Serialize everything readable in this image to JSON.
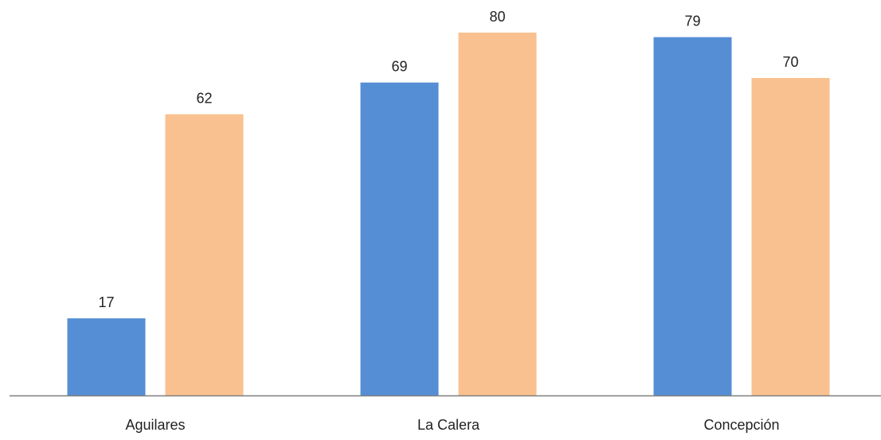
{
  "chart_data": {
    "type": "bar",
    "categories": [
      "Aguilares",
      "La Calera",
      "Concepción"
    ],
    "series": [
      {
        "color": "#558ED5",
        "values": [
          17,
          69,
          79
        ]
      },
      {
        "color": "#F9C18F",
        "values": [
          62,
          80,
          70
        ]
      }
    ],
    "title": "",
    "xlabel": "",
    "ylabel": "",
    "ylim": [
      0,
      85
    ],
    "grid": false,
    "legend": "none",
    "data_labels": true,
    "axis_color": "#7F7F7F"
  }
}
